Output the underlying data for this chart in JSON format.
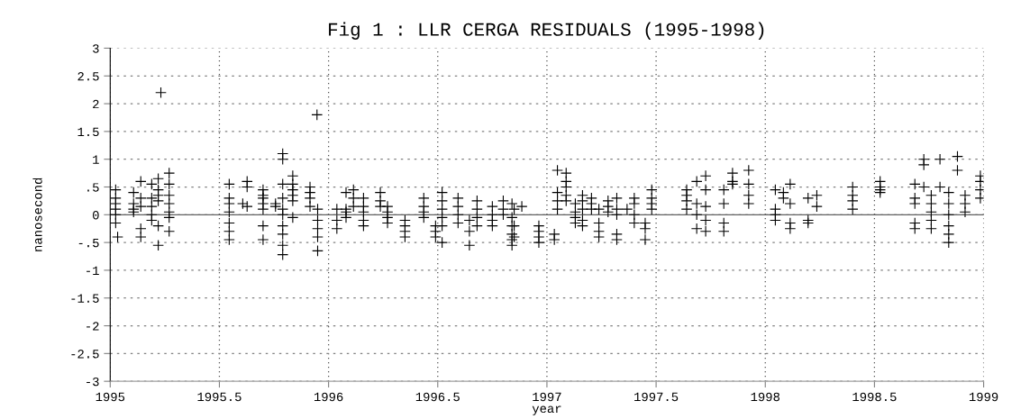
{
  "chart_data": {
    "type": "scatter",
    "title": "Fig 1 : LLR CERGA RESIDUALS (1995-1998)",
    "xlabel": "year",
    "ylabel": "nanosecond",
    "series": [
      {
        "color": "#000000",
        "x": [
          1995.025,
          1995.025,
          1995.025,
          1995.025,
          1995.025,
          1995.025,
          1995.034,
          1995.107,
          1995.107,
          1995.107,
          1995.107,
          1995.14,
          1995.14,
          1995.14,
          1995.14,
          1995.14,
          1995.19,
          1995.19,
          1995.19,
          1995.19,
          1995.19,
          1995.22,
          1995.22,
          1995.22,
          1995.22,
          1995.22,
          1995.22,
          1995.232,
          1995.27,
          1995.27,
          1995.27,
          1995.27,
          1995.27,
          1995.27,
          1995.27,
          1995.545,
          1995.545,
          1995.545,
          1995.545,
          1995.545,
          1995.545,
          1995.545,
          1995.607,
          1995.627,
          1995.627,
          1995.627,
          1995.7,
          1995.7,
          1995.7,
          1995.7,
          1995.7,
          1995.7,
          1995.7,
          1995.757,
          1995.757,
          1995.79,
          1995.79,
          1995.79,
          1995.79,
          1995.79,
          1995.79,
          1995.79,
          1995.79,
          1995.79,
          1995.79,
          1995.836,
          1995.836,
          1995.836,
          1995.836,
          1995.836,
          1995.836,
          1995.915,
          1995.915,
          1995.915,
          1995.915,
          1995.947,
          1995.95,
          1995.95,
          1995.95,
          1995.95,
          1995.95,
          1996.038,
          1996.038,
          1996.038,
          1996.08,
          1996.08,
          1996.08,
          1996.08,
          1996.114,
          1996.114,
          1996.114,
          1996.16,
          1996.16,
          1996.16,
          1996.16,
          1996.16,
          1996.237,
          1996.237,
          1996.237,
          1996.27,
          1996.27,
          1996.27,
          1996.27,
          1996.35,
          1996.35,
          1996.35,
          1996.35,
          1996.436,
          1996.436,
          1996.436,
          1996.436,
          1996.49,
          1996.49,
          1996.49,
          1996.52,
          1996.52,
          1996.52,
          1996.52,
          1996.52,
          1996.52,
          1996.593,
          1996.593,
          1996.593,
          1996.593,
          1996.645,
          1996.645,
          1996.645,
          1996.68,
          1996.68,
          1996.68,
          1996.68,
          1996.75,
          1996.75,
          1996.75,
          1996.75,
          1996.8,
          1996.8,
          1996.8,
          1996.84,
          1996.84,
          1996.84,
          1996.84,
          1996.84,
          1996.84,
          1996.85,
          1996.85,
          1996.85,
          1996.885,
          1996.963,
          1996.963,
          1996.963,
          1996.963,
          1997.034,
          1997.034,
          1997.048,
          1997.048,
          1997.048,
          1997.048,
          1997.088,
          1997.088,
          1997.088,
          1997.088,
          1997.088,
          1997.13,
          1997.13,
          1997.13,
          1997.13,
          1997.163,
          1997.163,
          1997.163,
          1997.163,
          1997.163,
          1997.204,
          1997.204,
          1997.204,
          1997.238,
          1997.238,
          1997.238,
          1997.238,
          1997.28,
          1997.28,
          1997.28,
          1997.32,
          1997.32,
          1997.32,
          1997.32,
          1997.32,
          1997.367,
          1997.4,
          1997.4,
          1997.4,
          1997.4,
          1997.45,
          1997.45,
          1997.45,
          1997.48,
          1997.48,
          1997.48,
          1997.48,
          1997.64,
          1997.64,
          1997.64,
          1997.64,
          1997.686,
          1997.686,
          1997.686,
          1997.686,
          1997.727,
          1997.727,
          1997.727,
          1997.727,
          1997.727,
          1997.81,
          1997.81,
          1997.81,
          1997.81,
          1997.85,
          1997.85,
          1997.85,
          1997.924,
          1997.924,
          1997.924,
          1997.924,
          1998.046,
          1998.046,
          1998.046,
          1998.046,
          1998.083,
          1998.083,
          1998.114,
          1998.114,
          1998.114,
          1998.114,
          1998.196,
          1998.196,
          1998.196,
          1998.236,
          1998.236,
          1998.4,
          1998.4,
          1998.4,
          1998.4,
          1998.526,
          1998.526,
          1998.526,
          1998.526,
          1998.685,
          1998.685,
          1998.685,
          1998.685,
          1998.685,
          1998.726,
          1998.726,
          1998.726,
          1998.76,
          1998.76,
          1998.76,
          1998.76,
          1998.76,
          1998.8,
          1998.8,
          1998.84,
          1998.84,
          1998.84,
          1998.84,
          1998.84,
          1998.84,
          1998.88,
          1998.88,
          1998.915,
          1998.915,
          1998.915,
          1998.985,
          1998.985,
          1998.985,
          1998.985
        ],
        "values": [
          0.45,
          0.3,
          0.2,
          0.1,
          0,
          -0.15,
          -0.4,
          0.4,
          0.2,
          0.1,
          0.05,
          0.6,
          0.3,
          0.15,
          -0.25,
          -0.4,
          0.55,
          0.3,
          0.15,
          0,
          -0.1,
          0.65,
          0.45,
          0.35,
          0.25,
          -0.2,
          -0.55,
          2.2,
          0.75,
          0.55,
          0.35,
          0.2,
          0.05,
          -0.05,
          -0.3,
          0.55,
          0.3,
          0.2,
          0.05,
          -0.15,
          -0.3,
          -0.45,
          0.2,
          0.6,
          0.5,
          0.15,
          0.45,
          0.35,
          0.3,
          0.2,
          0.1,
          -0.2,
          -0.45,
          0.2,
          0.15,
          1.1,
          1.0,
          0.55,
          0.3,
          0.1,
          0,
          -0.2,
          -0.35,
          -0.55,
          -0.72,
          0.7,
          0.55,
          0.45,
          0.35,
          0.25,
          -0.05,
          0.5,
          0.4,
          0.3,
          0.15,
          1.8,
          0.1,
          -0.1,
          -0.25,
          -0.4,
          -0.65,
          0.1,
          -0.1,
          -0.25,
          0.4,
          0.1,
          0.05,
          -0.05,
          0.45,
          0.3,
          0.15,
          0.3,
          0.15,
          0.05,
          -0.1,
          -0.2,
          0.4,
          0.25,
          0.15,
          0.15,
          0.05,
          -0.05,
          -0.15,
          -0.1,
          -0.2,
          -0.3,
          -0.4,
          0.3,
          0.15,
          0.05,
          -0.05,
          -0.2,
          -0.3,
          -0.4,
          0.4,
          0.25,
          0.1,
          -0.05,
          -0.2,
          -0.5,
          0.3,
          0.15,
          0,
          -0.15,
          -0.1,
          -0.3,
          -0.55,
          0.25,
          0.1,
          -0.05,
          -0.2,
          0.15,
          0,
          -0.1,
          -0.2,
          0.25,
          0.1,
          0,
          0.2,
          -0.05,
          -0.2,
          -0.35,
          -0.45,
          -0.55,
          0.1,
          -0.2,
          -0.4,
          0.15,
          -0.2,
          -0.3,
          -0.4,
          -0.5,
          -0.35,
          -0.45,
          0.8,
          0.4,
          0.25,
          0.1,
          0.75,
          0.6,
          0.5,
          0.35,
          0.25,
          0.2,
          0.05,
          -0.05,
          -0.15,
          0.35,
          0.25,
          0.1,
          -0.1,
          -0.2,
          0.3,
          0.2,
          0.1,
          0.1,
          -0.15,
          -0.3,
          -0.4,
          0.25,
          0.15,
          0.05,
          0.3,
          0.1,
          0,
          -0.35,
          -0.45,
          0.1,
          0.3,
          0.2,
          0,
          -0.15,
          -0.15,
          -0.25,
          -0.45,
          0.45,
          0.3,
          0.2,
          0.1,
          0.45,
          0.35,
          0.25,
          0.1,
          0.6,
          0.2,
          0,
          -0.25,
          0.7,
          0.45,
          0.15,
          -0.1,
          -0.3,
          0.45,
          0.2,
          -0.15,
          -0.3,
          0.75,
          0.6,
          0.55,
          0.8,
          0.55,
          0.35,
          0.2,
          0.45,
          0.1,
          0,
          -0.1,
          0.4,
          0.3,
          0.55,
          0.2,
          -0.15,
          -0.25,
          0.3,
          -0.1,
          -0.15,
          0.35,
          0.15,
          0.5,
          0.35,
          0.25,
          0.1,
          0.6,
          0.5,
          0.45,
          0.4,
          0.55,
          0.3,
          0.2,
          -0.15,
          -0.25,
          1.0,
          0.9,
          0.5,
          0.35,
          0.2,
          0.05,
          -0.1,
          -0.25,
          1.0,
          0.5,
          0.4,
          0.2,
          0,
          -0.2,
          -0.35,
          -0.5,
          1.05,
          0.8,
          0.35,
          0.2,
          0.05,
          0.7,
          0.6,
          0.45,
          0.3
        ]
      }
    ],
    "marker": "cross",
    "xlim": [
      1995,
      1999
    ],
    "xticks": [
      1995,
      1995.5,
      1996,
      1996.5,
      1997,
      1997.5,
      1998,
      1998.5,
      1999
    ],
    "ylim": [
      -3,
      3
    ],
    "yticks": [
      -3,
      {
        "value": -2.5,
        "label": "-2.5"
      },
      -2,
      {
        "value": -1.5,
        "label": "-1.5"
      },
      -1,
      {
        "value": -0.5,
        "label": "-.5"
      },
      0,
      {
        "value": 0.5,
        "label": ".5"
      },
      1,
      1.5,
      2,
      2.5,
      3
    ],
    "grid": true,
    "ref_lines": [
      {
        "axis": "y",
        "value": 0,
        "color": "#606060",
        "line_style": "solid"
      }
    ]
  }
}
